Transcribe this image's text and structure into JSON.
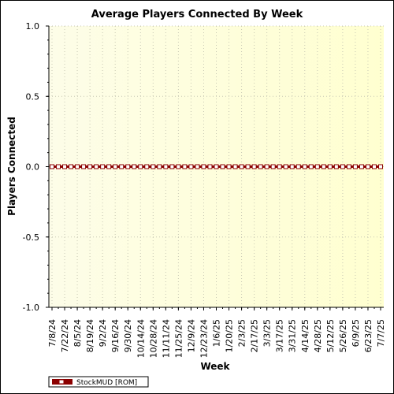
{
  "chart_data": {
    "type": "line",
    "title": "Average Players Connected By Week",
    "xlabel": "Week",
    "ylabel": "Players Connected",
    "ylim": [
      -1.0,
      1.0
    ],
    "y_ticks": [
      "1.0",
      "0.5",
      "0.0",
      "-0.5",
      "-1.0"
    ],
    "y_tick_values": [
      1.0,
      0.5,
      0.0,
      -0.5,
      -1.0
    ],
    "x_tick_labels": [
      "7/8/24",
      "7/22/24",
      "8/5/24",
      "8/19/24",
      "9/2/24",
      "9/16/24",
      "9/30/24",
      "10/14/24",
      "10/28/24",
      "11/11/24",
      "11/25/24",
      "12/9/24",
      "12/23/24",
      "1/6/25",
      "1/20/25",
      "2/3/25",
      "2/17/25",
      "3/3/25",
      "3/17/25",
      "3/31/25",
      "4/14/25",
      "4/28/25",
      "5/12/25",
      "5/26/25",
      "6/9/25",
      "6/23/25",
      "7/7/25"
    ],
    "x": [
      "7/8/24",
      "7/15/24",
      "7/22/24",
      "7/29/24",
      "8/5/24",
      "8/12/24",
      "8/19/24",
      "8/26/24",
      "9/2/24",
      "9/9/24",
      "9/16/24",
      "9/23/24",
      "9/30/24",
      "10/7/24",
      "10/14/24",
      "10/21/24",
      "10/28/24",
      "11/4/24",
      "11/11/24",
      "11/18/24",
      "11/25/24",
      "12/2/24",
      "12/9/24",
      "12/16/24",
      "12/23/24",
      "12/30/24",
      "1/6/25",
      "1/13/25",
      "1/20/25",
      "1/27/25",
      "2/3/25",
      "2/10/25",
      "2/17/25",
      "2/24/25",
      "3/3/25",
      "3/10/25",
      "3/17/25",
      "3/24/25",
      "3/31/25",
      "4/7/25",
      "4/14/25",
      "4/21/25",
      "4/28/25",
      "5/5/25",
      "5/12/25",
      "5/19/25",
      "5/26/25",
      "6/2/25",
      "6/9/25",
      "6/16/25",
      "6/23/25",
      "6/30/25",
      "7/7/25"
    ],
    "series": [
      {
        "name": "StockMUD [ROM]",
        "color": "#8b0000",
        "values": [
          0,
          0,
          0,
          0,
          0,
          0,
          0,
          0,
          0,
          0,
          0,
          0,
          0,
          0,
          0,
          0,
          0,
          0,
          0,
          0,
          0,
          0,
          0,
          0,
          0,
          0,
          0,
          0,
          0,
          0,
          0,
          0,
          0,
          0,
          0,
          0,
          0,
          0,
          0,
          0,
          0,
          0,
          0,
          0,
          0,
          0,
          0,
          0,
          0,
          0,
          0,
          0,
          0
        ]
      }
    ],
    "grid": true,
    "legend_position": "bottom-left",
    "plot_background": "#fffde0"
  }
}
